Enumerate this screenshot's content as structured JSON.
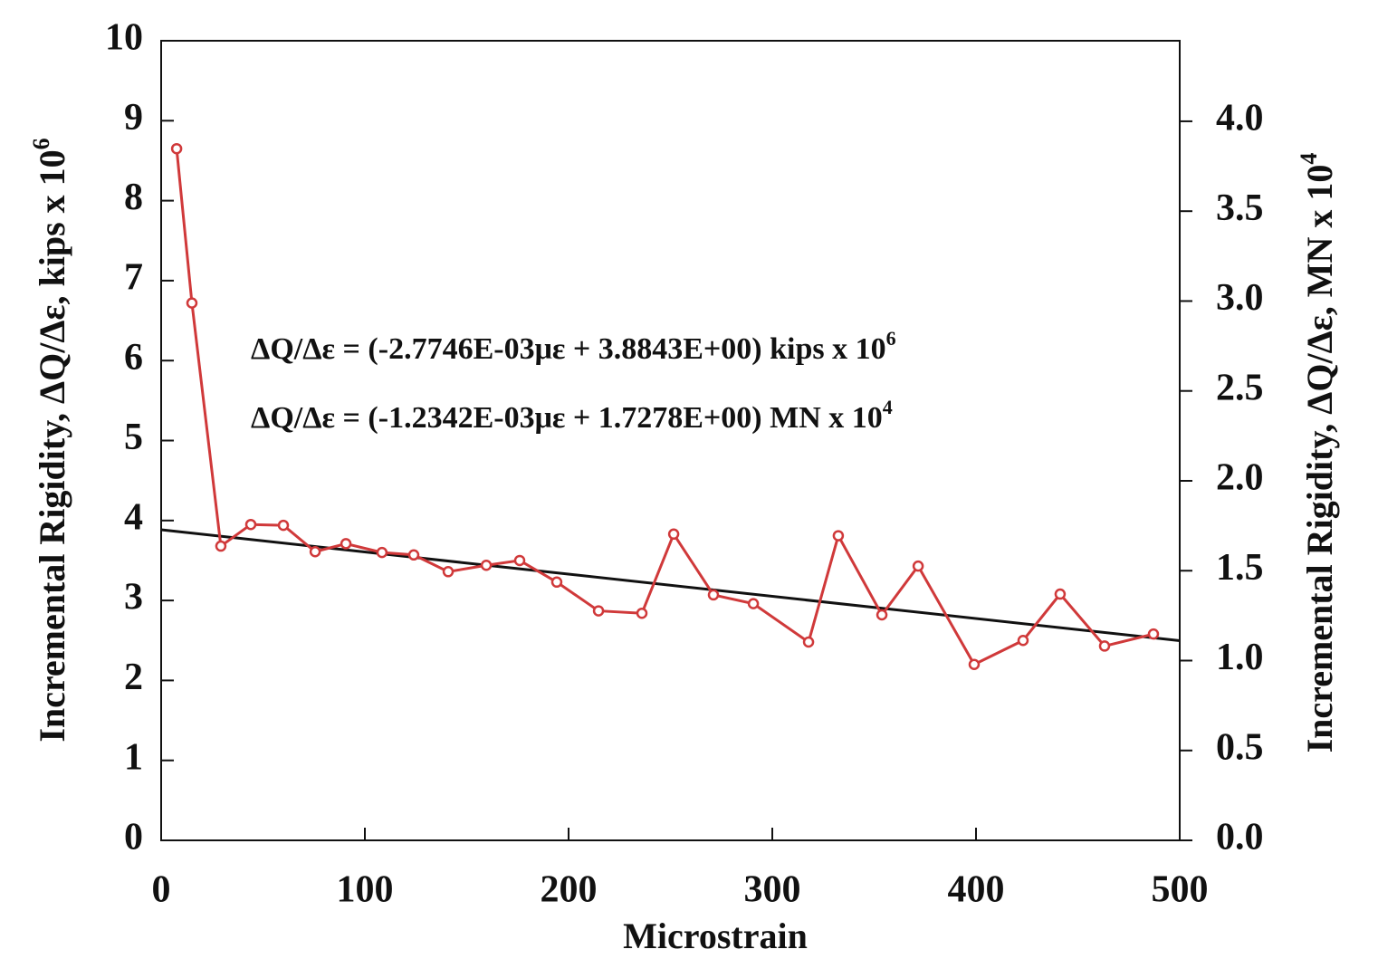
{
  "chart_data": {
    "type": "line",
    "x_label": "Microstrain",
    "y_label": {
      "text": "Incremental Rigidity, ΔQ/Δε, kips x 10",
      "sup": "6"
    },
    "y2_label": {
      "text": "Incremental Rigidity, ΔQ/Δε, MN x 10",
      "sup": "4"
    },
    "annotations": [
      {
        "text": "ΔQ/Δε = (-2.7746E-03με + 3.8843E+00) kips x 10",
        "sup": "6"
      },
      {
        "text": "ΔQ/Δε = (-1.2342E-03με + 1.7278E+00) MN x 10",
        "sup": "4"
      }
    ],
    "x": [
      7.6,
      15.1,
      29.3,
      44,
      60,
      75.6,
      90.7,
      108.4,
      124,
      140.9,
      159.6,
      176,
      194.2,
      214.7,
      236,
      251.6,
      271.1,
      290.7,
      317.8,
      332.4,
      353.8,
      371.6,
      399.1,
      423.1,
      441.3,
      463.1,
      487.1
    ],
    "series": [
      {
        "color": "#d0393a",
        "values": [
          8.65,
          6.72,
          3.68,
          3.95,
          3.94,
          3.61,
          3.71,
          3.6,
          3.57,
          3.36,
          3.44,
          3.5,
          3.23,
          2.87,
          2.84,
          3.83,
          3.07,
          2.96,
          2.48,
          3.81,
          2.82,
          3.43,
          2.2,
          2.5,
          3.08,
          2.43,
          2.58
        ]
      }
    ],
    "fit": {
      "color": "#111111",
      "x": [
        0,
        500
      ],
      "values": [
        3.8843,
        2.497
      ]
    },
    "xlim": [
      0,
      500
    ],
    "xticks": [
      0,
      100,
      200,
      300,
      400,
      500
    ],
    "ylim": [
      0,
      10
    ],
    "yticks": [
      0,
      1,
      2,
      3,
      4,
      5,
      6,
      7,
      8,
      9,
      10
    ],
    "y2lim": [
      0,
      4.448
    ],
    "y2ticks": [
      {
        "value": 0,
        "label": "0.0"
      },
      0.5,
      {
        "value": 1,
        "label": "1.0"
      },
      1.5,
      {
        "value": 2,
        "label": "2.0"
      },
      2.5,
      {
        "value": 3,
        "label": "3.0"
      },
      3.5,
      {
        "value": 4,
        "label": "4.0"
      }
    ]
  }
}
